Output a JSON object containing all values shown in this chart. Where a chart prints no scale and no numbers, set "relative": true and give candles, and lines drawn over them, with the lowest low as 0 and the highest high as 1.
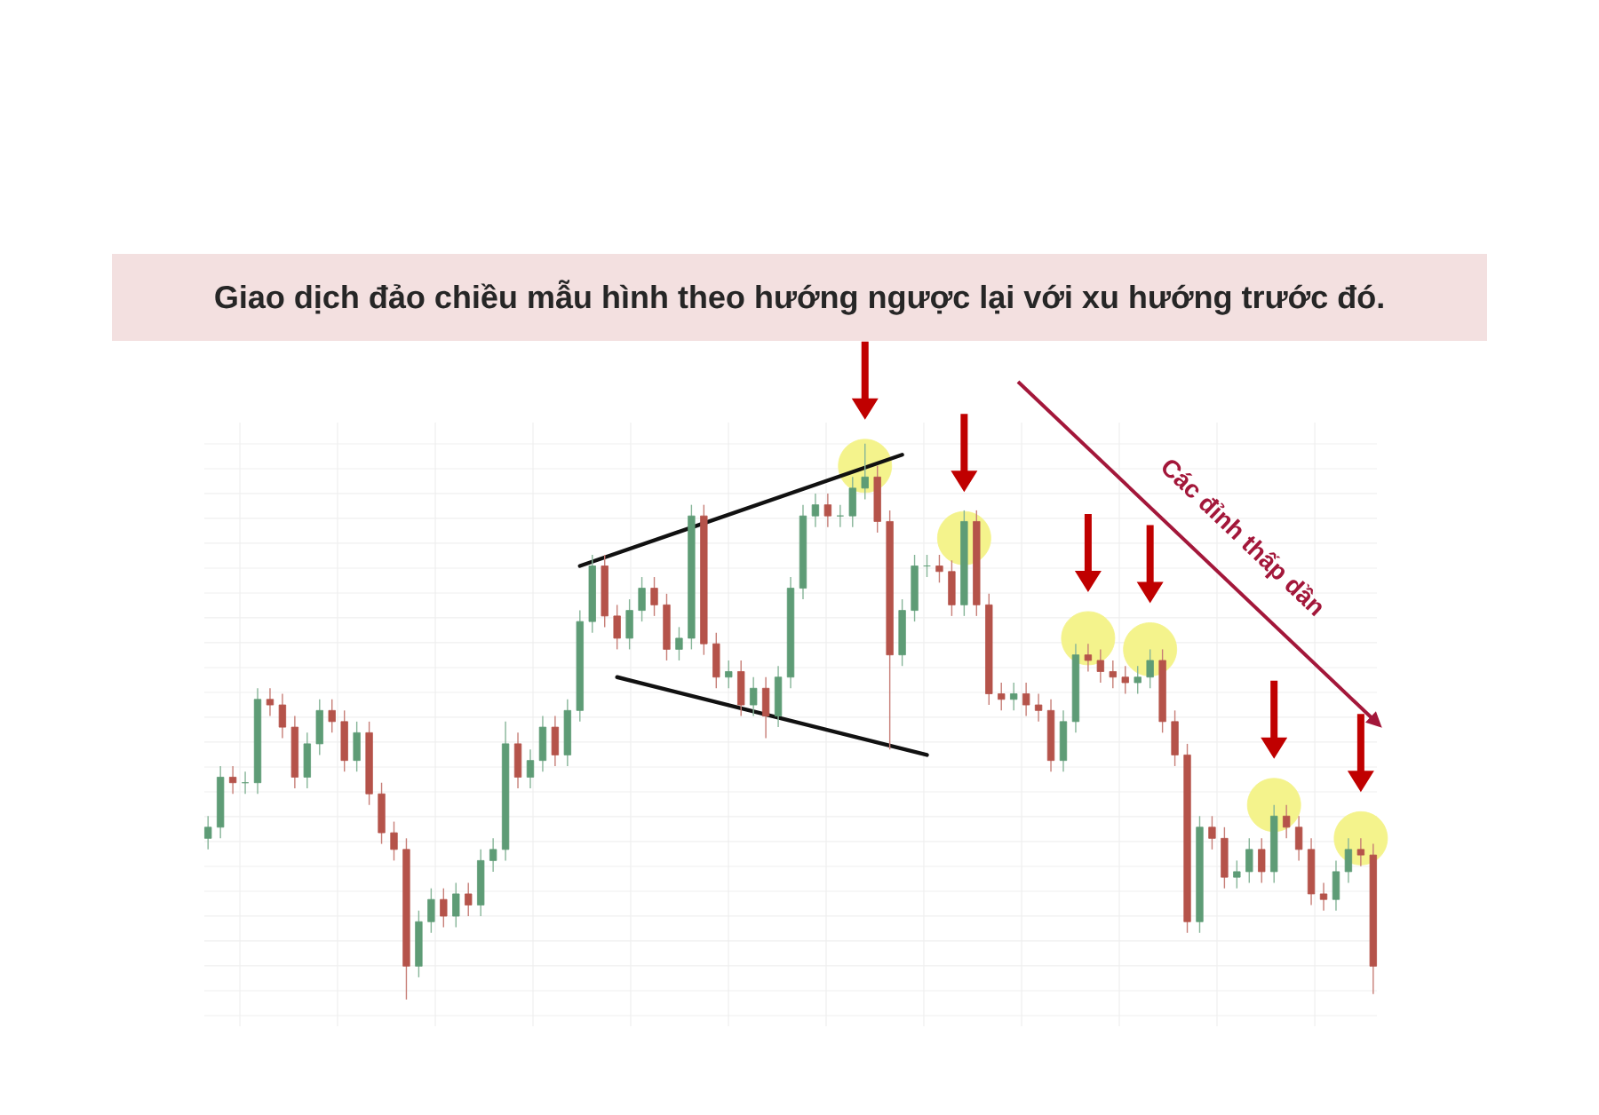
{
  "chart_data": {
    "type": "candlestick",
    "title": "Giao dịch đảo chiều mẫu hình theo hướng ngược lại với xu hướng trước đó.",
    "annotations": [
      "Các đỉnh thấp dần"
    ],
    "relative": true,
    "categories": [
      null,
      null,
      null,
      null,
      null,
      null,
      null,
      null,
      null,
      null,
      null,
      null,
      null,
      null,
      null,
      null,
      null,
      null,
      null,
      null,
      null,
      null,
      null,
      null,
      null,
      null,
      null,
      null,
      null,
      null,
      null,
      null,
      null,
      null,
      null,
      null,
      null,
      null,
      null,
      null,
      null,
      null,
      null,
      null,
      null,
      null,
      null,
      null,
      null,
      null,
      null,
      null,
      null,
      null,
      null,
      null,
      null,
      null,
      null,
      null,
      null,
      null,
      null,
      null,
      null,
      null,
      null,
      null,
      null,
      null,
      null,
      null,
      null,
      null,
      null,
      null,
      null,
      null,
      null,
      null,
      null,
      null,
      null,
      null,
      null,
      null,
      null,
      null,
      null,
      null,
      null,
      null,
      null,
      null,
      null
    ],
    "ohlc": [
      [
        0.29,
        0.33,
        0.27,
        0.31
      ],
      [
        0.31,
        0.42,
        0.29,
        0.4
      ],
      [
        0.4,
        0.42,
        0.37,
        0.39
      ],
      [
        0.39,
        0.41,
        0.37,
        0.39
      ],
      [
        0.39,
        0.56,
        0.37,
        0.54
      ],
      [
        0.54,
        0.56,
        0.51,
        0.53
      ],
      [
        0.53,
        0.55,
        0.47,
        0.49
      ],
      [
        0.49,
        0.51,
        0.38,
        0.4
      ],
      [
        0.4,
        0.48,
        0.38,
        0.46
      ],
      [
        0.46,
        0.54,
        0.44,
        0.52
      ],
      [
        0.52,
        0.54,
        0.48,
        0.5
      ],
      [
        0.5,
        0.52,
        0.41,
        0.43
      ],
      [
        0.43,
        0.5,
        0.41,
        0.48
      ],
      [
        0.48,
        0.5,
        0.35,
        0.37
      ],
      [
        0.37,
        0.39,
        0.28,
        0.3
      ],
      [
        0.3,
        0.32,
        0.25,
        0.27
      ],
      [
        0.27,
        0.29,
        0.0,
        0.06
      ],
      [
        0.06,
        0.16,
        0.04,
        0.14
      ],
      [
        0.14,
        0.2,
        0.12,
        0.18
      ],
      [
        0.18,
        0.2,
        0.13,
        0.15
      ],
      [
        0.15,
        0.21,
        0.13,
        0.19
      ],
      [
        0.19,
        0.21,
        0.15,
        0.17
      ],
      [
        0.17,
        0.27,
        0.15,
        0.25
      ],
      [
        0.25,
        0.29,
        0.23,
        0.27
      ],
      [
        0.27,
        0.5,
        0.25,
        0.46
      ],
      [
        0.46,
        0.48,
        0.38,
        0.4
      ],
      [
        0.4,
        0.45,
        0.38,
        0.43
      ],
      [
        0.43,
        0.51,
        0.41,
        0.49
      ],
      [
        0.49,
        0.51,
        0.42,
        0.44
      ],
      [
        0.44,
        0.54,
        0.42,
        0.52
      ],
      [
        0.52,
        0.7,
        0.5,
        0.68
      ],
      [
        0.68,
        0.8,
        0.66,
        0.78
      ],
      [
        0.78,
        0.8,
        0.67,
        0.69
      ],
      [
        0.69,
        0.71,
        0.63,
        0.65
      ],
      [
        0.65,
        0.72,
        0.63,
        0.7
      ],
      [
        0.7,
        0.76,
        0.68,
        0.74
      ],
      [
        0.74,
        0.76,
        0.69,
        0.71
      ],
      [
        0.71,
        0.73,
        0.61,
        0.63
      ],
      [
        0.63,
        0.67,
        0.61,
        0.65
      ],
      [
        0.65,
        0.89,
        0.63,
        0.87
      ],
      [
        0.87,
        0.89,
        0.62,
        0.64
      ],
      [
        0.64,
        0.66,
        0.56,
        0.58
      ],
      [
        0.58,
        0.61,
        0.56,
        0.59
      ],
      [
        0.59,
        0.61,
        0.51,
        0.53
      ],
      [
        0.53,
        0.58,
        0.51,
        0.56
      ],
      [
        0.56,
        0.58,
        0.47,
        0.51
      ],
      [
        0.51,
        0.6,
        0.49,
        0.58
      ],
      [
        0.58,
        0.76,
        0.56,
        0.74
      ],
      [
        0.74,
        0.89,
        0.72,
        0.87
      ],
      [
        0.87,
        0.91,
        0.85,
        0.89
      ],
      [
        0.89,
        0.91,
        0.85,
        0.87
      ],
      [
        0.87,
        0.89,
        0.85,
        0.87
      ],
      [
        0.87,
        0.94,
        0.85,
        0.92
      ],
      [
        0.92,
        1.0,
        0.9,
        0.94
      ],
      [
        0.94,
        0.96,
        0.84,
        0.86
      ],
      [
        0.86,
        0.88,
        0.45,
        0.62
      ],
      [
        0.62,
        0.72,
        0.6,
        0.7
      ],
      [
        0.7,
        0.8,
        0.68,
        0.78
      ],
      [
        0.78,
        0.8,
        0.76,
        0.78
      ],
      [
        0.78,
        0.8,
        0.75,
        0.77
      ],
      [
        0.77,
        0.79,
        0.69,
        0.71
      ],
      [
        0.71,
        0.88,
        0.69,
        0.86
      ],
      [
        0.86,
        0.88,
        0.69,
        0.71
      ],
      [
        0.71,
        0.73,
        0.53,
        0.55
      ],
      [
        0.55,
        0.57,
        0.52,
        0.54
      ],
      [
        0.54,
        0.57,
        0.52,
        0.55
      ],
      [
        0.55,
        0.57,
        0.51,
        0.53
      ],
      [
        0.53,
        0.55,
        0.5,
        0.52
      ],
      [
        0.52,
        0.54,
        0.41,
        0.43
      ],
      [
        0.43,
        0.52,
        0.41,
        0.5
      ],
      [
        0.5,
        0.64,
        0.48,
        0.62
      ],
      [
        0.62,
        0.64,
        0.59,
        0.61
      ],
      [
        0.61,
        0.63,
        0.57,
        0.59
      ],
      [
        0.59,
        0.61,
        0.56,
        0.58
      ],
      [
        0.58,
        0.6,
        0.55,
        0.57
      ],
      [
        0.57,
        0.6,
        0.55,
        0.58
      ],
      [
        0.58,
        0.63,
        0.56,
        0.61
      ],
      [
        0.61,
        0.63,
        0.48,
        0.5
      ],
      [
        0.5,
        0.52,
        0.42,
        0.44
      ],
      [
        0.44,
        0.46,
        0.12,
        0.14
      ],
      [
        0.14,
        0.33,
        0.12,
        0.31
      ],
      [
        0.31,
        0.33,
        0.27,
        0.29
      ],
      [
        0.29,
        0.31,
        0.2,
        0.22
      ],
      [
        0.22,
        0.25,
        0.2,
        0.23
      ],
      [
        0.23,
        0.29,
        0.21,
        0.27
      ],
      [
        0.27,
        0.29,
        0.21,
        0.23
      ],
      [
        0.23,
        0.35,
        0.21,
        0.33
      ],
      [
        0.33,
        0.35,
        0.29,
        0.31
      ],
      [
        0.31,
        0.33,
        0.25,
        0.27
      ],
      [
        0.27,
        0.29,
        0.17,
        0.19
      ],
      [
        0.19,
        0.21,
        0.16,
        0.18
      ],
      [
        0.18,
        0.25,
        0.16,
        0.23
      ],
      [
        0.23,
        0.29,
        0.21,
        0.27
      ],
      [
        0.27,
        0.29,
        0.24,
        0.26
      ],
      [
        0.26,
        0.28,
        0.01,
        0.06
      ]
    ],
    "series": [
      {
        "type": "line",
        "color": "#111111",
        "values": [
          null,
          null,
          null,
          null,
          null,
          null,
          null,
          null,
          null,
          null,
          null,
          null,
          null,
          null,
          null,
          null,
          null,
          null,
          null,
          null,
          null,
          null,
          null,
          null,
          null,
          null,
          null,
          null,
          null,
          null,
          0.78,
          null,
          null,
          null,
          null,
          null,
          null,
          null,
          null,
          null,
          null,
          null,
          null,
          null,
          null,
          null,
          null,
          null,
          null,
          null,
          null,
          null,
          null,
          null,
          null,
          null,
          0.98,
          null,
          null,
          null,
          null,
          null,
          null,
          null,
          null,
          null,
          null,
          null,
          null,
          null,
          null,
          null,
          null,
          null,
          null,
          null,
          null,
          null,
          null,
          null,
          null,
          null,
          null,
          null,
          null,
          null,
          null,
          null,
          null,
          null,
          null,
          null,
          null,
          null,
          null
        ]
      },
      {
        "type": "line",
        "color": "#111111",
        "values": [
          null,
          null,
          null,
          null,
          null,
          null,
          null,
          null,
          null,
          null,
          null,
          null,
          null,
          null,
          null,
          null,
          null,
          null,
          null,
          null,
          null,
          null,
          null,
          null,
          null,
          null,
          null,
          null,
          null,
          null,
          null,
          null,
          null,
          0.58,
          null,
          null,
          null,
          null,
          null,
          null,
          null,
          null,
          null,
          null,
          null,
          null,
          null,
          null,
          null,
          null,
          null,
          null,
          null,
          null,
          null,
          null,
          null,
          null,
          0.44,
          null,
          null,
          null,
          null,
          null,
          null,
          null,
          null,
          null,
          null,
          null,
          null,
          null,
          null,
          null,
          null,
          null,
          null,
          null,
          null,
          null,
          null,
          null,
          null,
          null,
          null,
          null,
          null,
          null,
          null,
          null,
          null,
          null,
          null,
          null,
          null
        ]
      },
      {
        "type": "scatter",
        "color": "#f4f38c",
        "marker": "circle",
        "values": [
          null,
          null,
          null,
          null,
          null,
          null,
          null,
          null,
          null,
          null,
          null,
          null,
          null,
          null,
          null,
          null,
          null,
          null,
          null,
          null,
          null,
          null,
          null,
          null,
          null,
          null,
          null,
          null,
          null,
          null,
          null,
          null,
          null,
          null,
          null,
          null,
          null,
          null,
          null,
          null,
          null,
          null,
          null,
          null,
          null,
          null,
          null,
          null,
          null,
          null,
          null,
          null,
          null,
          0.96,
          null,
          null,
          null,
          null,
          null,
          null,
          null,
          0.83,
          null,
          null,
          null,
          null,
          null,
          null,
          null,
          null,
          null,
          0.65,
          null,
          null,
          null,
          null,
          0.63,
          null,
          null,
          null,
          null,
          null,
          null,
          null,
          null,
          null,
          0.35,
          null,
          null,
          null,
          null,
          null,
          null,
          0.29,
          null
        ]
      }
    ]
  }
}
